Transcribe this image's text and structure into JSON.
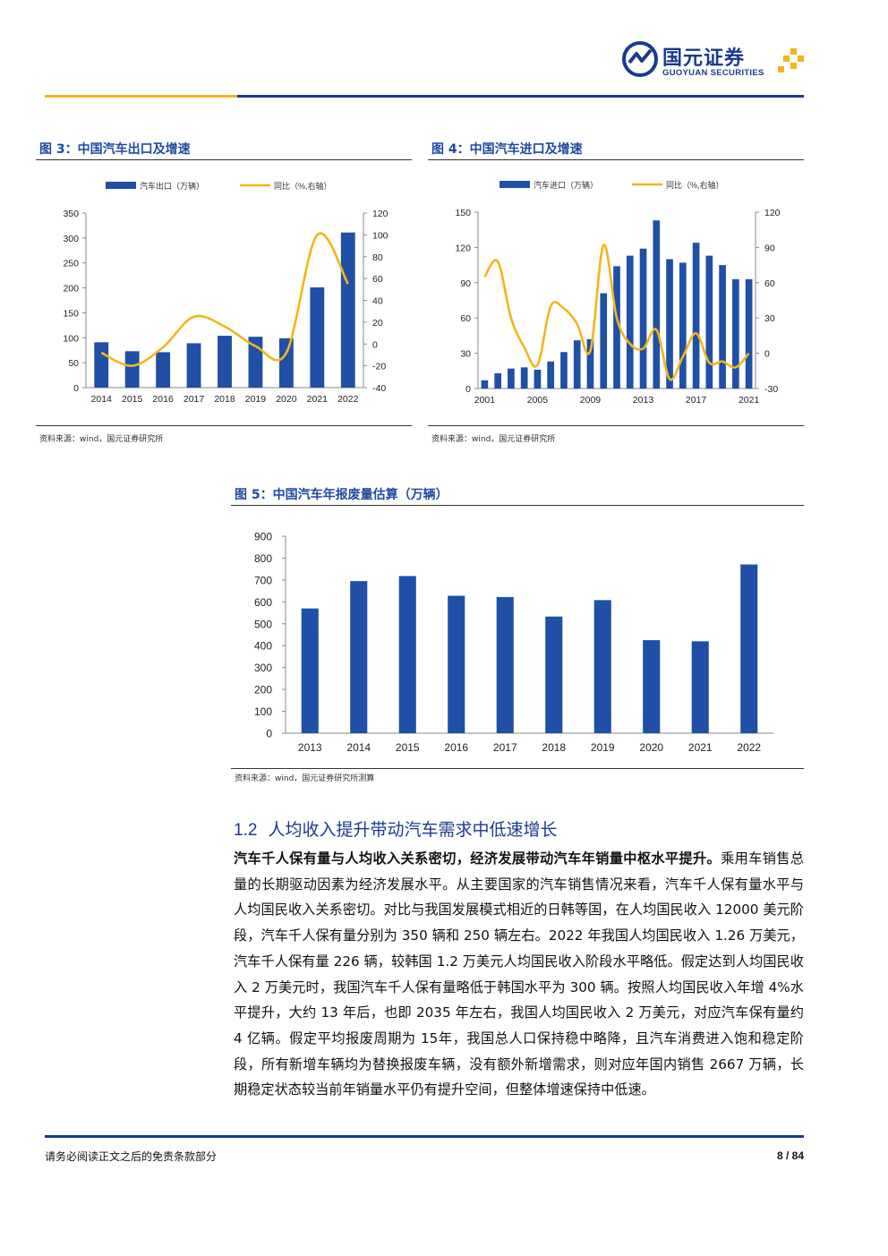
{
  "header": {
    "logo_cn": "国元证券",
    "logo_en": "GUOYUAN SECURITIES"
  },
  "colors": {
    "brand_blue": "#1a3a8f",
    "bar_blue": "#1f4fa6",
    "line_gold": "#f2b51c",
    "title_blue": "#1f4aa0"
  },
  "figures": {
    "fig3": {
      "title": "图 3：中国汽车出口及增速",
      "source": "资料来源：wind，国元证券研究所"
    },
    "fig4": {
      "title": "图 4：中国汽车进口及增速",
      "source": "资料来源：wind，国元证券研究所"
    },
    "fig5": {
      "title": "图 5：中国汽车年报废量估算（万辆）",
      "source": "资料来源：wind，国元证券研究所测算"
    }
  },
  "chart_data": [
    {
      "type": "bar",
      "id": "fig3",
      "categories": [
        "2014",
        "2015",
        "2016",
        "2017",
        "2018",
        "2019",
        "2020",
        "2021",
        "2022"
      ],
      "series": [
        {
          "name": "汽车出口（万辆）",
          "type": "bar",
          "axis": "left",
          "values": [
            91,
            73,
            71,
            89,
            104,
            102,
            99,
            201,
            311
          ]
        },
        {
          "name": "同比（%,右轴）",
          "type": "line",
          "axis": "right",
          "values": [
            -8,
            -20,
            -3,
            25,
            16,
            -2,
            -8,
            100,
            55
          ]
        }
      ],
      "ylim": [
        0,
        350
      ],
      "yticks": [
        0,
        50,
        100,
        150,
        200,
        250,
        300,
        350
      ],
      "y2lim": [
        -40,
        120
      ],
      "y2ticks": [
        -40,
        -20,
        0,
        20,
        40,
        60,
        80,
        100,
        120
      ],
      "legend": "top"
    },
    {
      "type": "bar",
      "id": "fig4",
      "categories": [
        "2001",
        "2002",
        "2003",
        "2004",
        "2005",
        "2006",
        "2007",
        "2008",
        "2009",
        "2010",
        "2011",
        "2012",
        "2013",
        "2014",
        "2015",
        "2016",
        "2017",
        "2018",
        "2019",
        "2020",
        "2021"
      ],
      "xticks": [
        "2001",
        "2005",
        "2009",
        "2013",
        "2017",
        "2021"
      ],
      "series": [
        {
          "name": "汽车进口（万辆）",
          "type": "bar",
          "axis": "left",
          "values": [
            7,
            13,
            17,
            18,
            16,
            23,
            31,
            41,
            42,
            81,
            104,
            113,
            119,
            143,
            110,
            107,
            124,
            113,
            105,
            93,
            93
          ]
        },
        {
          "name": "同比（%,右轴）",
          "type": "line",
          "axis": "right",
          "values": [
            65,
            78,
            30,
            5,
            -10,
            40,
            38,
            25,
            2,
            92,
            30,
            8,
            4,
            20,
            -22,
            -3,
            17,
            -8,
            -7,
            -12,
            0
          ]
        }
      ],
      "ylim": [
        0,
        150
      ],
      "yticks": [
        0,
        30,
        60,
        90,
        120,
        150
      ],
      "y2lim": [
        -30,
        120
      ],
      "y2ticks": [
        -30,
        0,
        30,
        60,
        90,
        120
      ],
      "legend": "top"
    },
    {
      "type": "bar",
      "id": "fig5",
      "categories": [
        "2013",
        "2014",
        "2015",
        "2016",
        "2017",
        "2018",
        "2019",
        "2020",
        "2021",
        "2022"
      ],
      "series": [
        {
          "name": "汽车年报废量（万辆）",
          "type": "bar",
          "axis": "left",
          "values": [
            570,
            695,
            718,
            628,
            622,
            533,
            608,
            425,
            420,
            771
          ]
        }
      ],
      "ylim": [
        0,
        900
      ],
      "yticks": [
        0,
        100,
        200,
        300,
        400,
        500,
        600,
        700,
        800,
        900
      ]
    }
  ],
  "section": {
    "number": "1.2",
    "title": "人均收入提升带动汽车需求中低速增长"
  },
  "paragraph": {
    "lead": "汽车千人保有量与人均收入关系密切，经济发展带动汽车年销量中枢水平提升。",
    "body": "乘用车销售总量的长期驱动因素为经济发展水平。从主要国家的汽车销售情况来看，汽车千人保有量水平与人均国民收入关系密切。对比与我国发展模式相近的日韩等国，在人均国民收入 12000 美元阶段，汽车千人保有量分别为 350 辆和 250 辆左右。2022 年我国人均国民收入 1.26 万美元，汽车千人保有量 226 辆，较韩国 1.2 万美元人均国民收入阶段水平略低。假定达到人均国民收入 2 万美元时，我国汽车千人保有量略低于韩国水平为 300 辆。按照人均国民收入年增 4%水平提升，大约 13 年后，也即 2035 年左右，我国人均国民收入 2 万美元，对应汽车保有量约 4 亿辆。假定平均报废周期为 15年，我国总人口保持稳中略降，且汽车消费进入饱和稳定阶段，所有新增车辆均为替换报废车辆，没有额外新增需求，则对应年国内销售 2667 万辆，长期稳定状态较当前年销量水平仍有提升空间，但整体增速保持中低速。"
  },
  "footer": {
    "disclaimer": "请务必阅读正文之后的免责条款部分",
    "page": "8 / 84"
  }
}
